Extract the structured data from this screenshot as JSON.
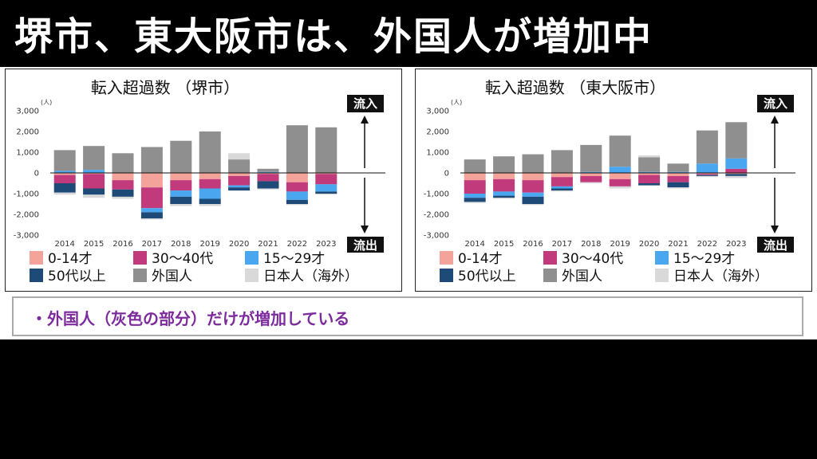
{
  "page": {
    "title": "堺市、東大阪市は、外国人が増加中",
    "note": "・外国人（灰色の部分）だけが増加している"
  },
  "colors": {
    "age_0_14": "#f4a39a",
    "age_30_40": "#c13a7c",
    "age_15_29": "#4aa6ee",
    "age_50_plus": "#1e4a78",
    "foreigner": "#8f8f8f",
    "japanese_overseas": "#d9d9d9"
  },
  "legend": [
    "0-14才",
    "30〜40代",
    "15〜29才",
    "50代以上",
    "外国人",
    "日本人（海外）"
  ],
  "labels": {
    "inflow": "流入",
    "outflow": "流出",
    "unit": "(人)"
  },
  "chart_data": [
    {
      "type": "bar",
      "stacked": true,
      "title": "転入超過数 （堺市）",
      "ylabel": "(人)",
      "ylim": [
        -3000,
        3000
      ],
      "yticks": [
        "3,000",
        "2,000",
        "1,000",
        "0",
        "-1,000",
        "-2,000",
        "-3,000"
      ],
      "categories": [
        "2014",
        "2015",
        "2016",
        "2017",
        "2018",
        "2019",
        "2020",
        "2021",
        "2022",
        "2023"
      ],
      "series": [
        {
          "name": "0-14才",
          "values": [
            -100,
            -50,
            -350,
            -700,
            -350,
            -300,
            -150,
            -50,
            -450,
            -50
          ]
        },
        {
          "name": "30〜40代",
          "values": [
            -400,
            -700,
            -450,
            -1000,
            -500,
            -450,
            -450,
            -350,
            -450,
            -500
          ]
        },
        {
          "name": "15〜29才",
          "values": [
            100,
            150,
            0,
            -200,
            -300,
            -500,
            -100,
            50,
            -400,
            -350
          ]
        },
        {
          "name": "50代以上",
          "values": [
            -450,
            -300,
            -350,
            -300,
            -350,
            -250,
            -150,
            -350,
            -200,
            -100
          ]
        },
        {
          "name": "外国人",
          "values": [
            1000,
            1150,
            950,
            1250,
            1550,
            2000,
            650,
            150,
            2300,
            2200
          ]
        },
        {
          "name": "日本人（海外）",
          "values": [
            -100,
            -150,
            -100,
            -50,
            -100,
            -100,
            300,
            -50,
            -50,
            -50
          ]
        }
      ]
    },
    {
      "type": "bar",
      "stacked": true,
      "title": "転入超過数 （東大阪市）",
      "ylabel": "(人)",
      "ylim": [
        -3000,
        3000
      ],
      "yticks": [
        "3,000",
        "2,000",
        "1,000",
        "0",
        "-1,000",
        "-2,000",
        "-3,000"
      ],
      "categories": [
        "2014",
        "2015",
        "2016",
        "2017",
        "2018",
        "2019",
        "2020",
        "2021",
        "2022",
        "2023"
      ],
      "series": [
        {
          "name": "0-14才",
          "values": [
            -350,
            -300,
            -350,
            -200,
            -150,
            -300,
            -100,
            -150,
            -50,
            -50
          ]
        },
        {
          "name": "30〜40代",
          "values": [
            -650,
            -600,
            -600,
            -450,
            -300,
            -350,
            -400,
            -300,
            -50,
            200
          ]
        },
        {
          "name": "15〜29才",
          "values": [
            -200,
            -200,
            -200,
            -100,
            50,
            300,
            50,
            50,
            450,
            500
          ]
        },
        {
          "name": "50代以上",
          "values": [
            -200,
            -100,
            -350,
            -100,
            0,
            0,
            -100,
            -250,
            -50,
            -100
          ]
        },
        {
          "name": "外国人",
          "values": [
            650,
            800,
            900,
            1100,
            1300,
            1500,
            700,
            400,
            1600,
            1750
          ]
        },
        {
          "name": "日本人（海外）",
          "values": [
            -50,
            -50,
            -50,
            -50,
            -50,
            -100,
            100,
            -50,
            -50,
            -100
          ]
        }
      ]
    }
  ]
}
